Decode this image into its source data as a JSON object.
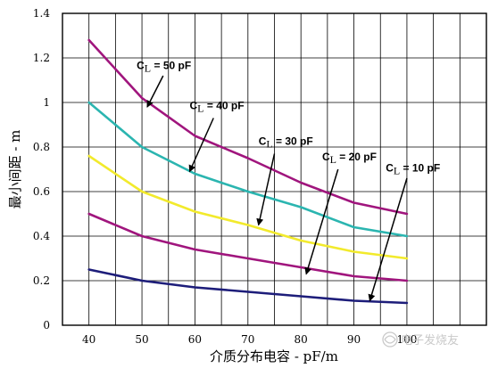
{
  "chart_data": {
    "type": "line",
    "xlabel": "介质分布电容 - pF/m",
    "ylabel": "最小间距 - m",
    "xlim": [
      35,
      115
    ],
    "ylim": [
      0,
      1.4
    ],
    "x_ticks": [
      "40",
      "50",
      "60",
      "70",
      "80",
      "90",
      "100"
    ],
    "y_ticks": [
      "0",
      "0.2",
      "0.4",
      "0.6",
      "0.8",
      "1",
      "1.2",
      "1.4"
    ],
    "grid": true,
    "x": [
      40,
      50,
      60,
      70,
      80,
      90,
      100
    ],
    "series": [
      {
        "name": "CL = 50 pF",
        "label_main": "C",
        "label_sub": "L",
        "label_rest": " = 50 pF",
        "color": "#a0157d",
        "values": [
          1.28,
          1.02,
          0.85,
          0.75,
          0.64,
          0.55,
          0.5
        ]
      },
      {
        "name": "CL = 40 pF",
        "label_main": "C",
        "label_sub": "L",
        "label_rest": " = 40 pF",
        "color": "#2bb5b0",
        "values": [
          1.0,
          0.8,
          0.68,
          0.6,
          0.53,
          0.44,
          0.4
        ]
      },
      {
        "name": "CL = 30 pF",
        "label_main": "C",
        "label_sub": "L",
        "label_rest": " = 30 pF",
        "color": "#f2ea2c",
        "values": [
          0.76,
          0.6,
          0.51,
          0.45,
          0.38,
          0.33,
          0.3
        ]
      },
      {
        "name": "CL = 20 pF",
        "label_main": "C",
        "label_sub": "L",
        "label_rest": " = 20 pF",
        "color": "#a0157d",
        "values": [
          0.5,
          0.4,
          0.34,
          0.3,
          0.26,
          0.22,
          0.2
        ]
      },
      {
        "name": "CL = 10 pF",
        "label_main": "C",
        "label_sub": "L",
        "label_rest": " = 10 pF",
        "color": "#1d1d7a",
        "values": [
          0.25,
          0.2,
          0.17,
          0.15,
          0.13,
          0.11,
          0.1
        ]
      }
    ]
  },
  "watermark": {
    "text": "电子发烧友",
    "icon": "watermark-logo-icon"
  }
}
